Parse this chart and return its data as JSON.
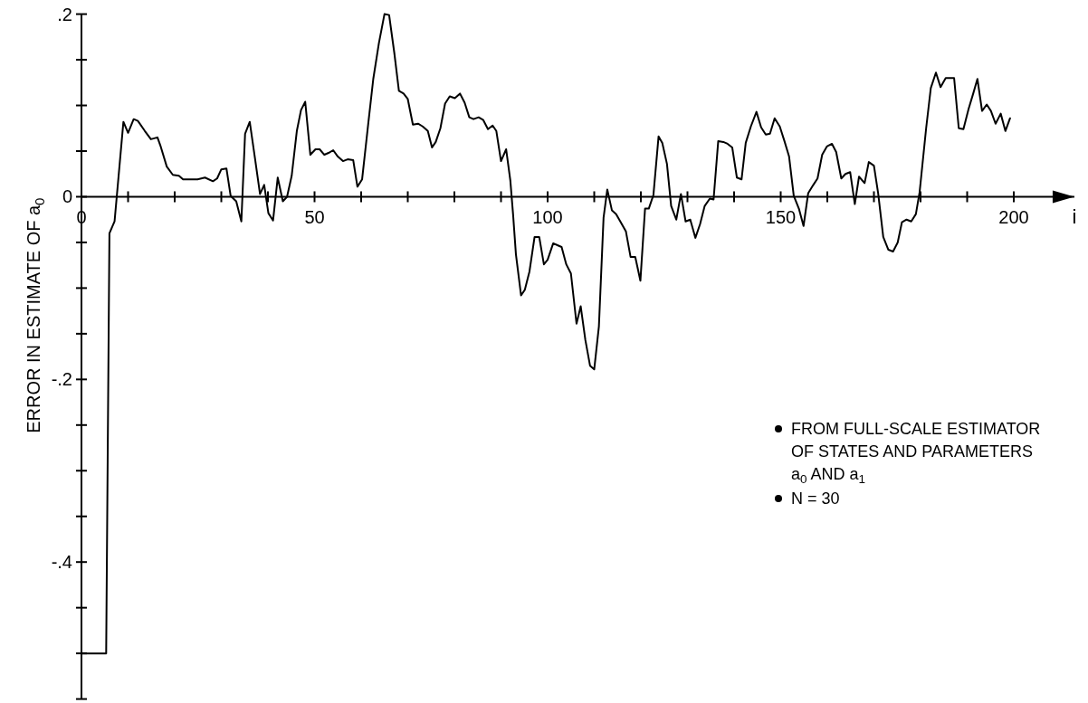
{
  "chart_data": {
    "type": "line",
    "xlabel": "i",
    "ylabel": "ERROR IN ESTIMATE OF a$_{0}$",
    "annotations": [
      "FROM FULL-SCALE ESTIMATOR OF STATES AND PARAMETERS a$_{0}$ AND a$_{1}$",
      "N = 30"
    ],
    "xlim": [
      0,
      213
    ],
    "ylim": [
      -0.55,
      0.2
    ],
    "xticks": [
      0,
      {
        "value": 10,
        "label": null
      },
      {
        "value": 20,
        "label": null
      },
      {
        "value": 30,
        "label": null
      },
      {
        "value": 40,
        "label": null
      },
      50,
      {
        "value": 60,
        "label": null
      },
      {
        "value": 70,
        "label": null
      },
      {
        "value": 80,
        "label": null
      },
      {
        "value": 90,
        "label": null
      },
      100,
      {
        "value": 110,
        "label": null
      },
      {
        "value": 120,
        "label": null
      },
      {
        "value": 130,
        "label": null
      },
      {
        "value": 140,
        "label": null
      },
      150,
      {
        "value": 160,
        "label": null
      },
      {
        "value": 170,
        "label": null
      },
      {
        "value": 180,
        "label": null
      },
      {
        "value": 190,
        "label": null
      },
      200
    ],
    "yticks": [
      {
        "value": -0.55,
        "label": null
      },
      {
        "value": -0.5,
        "label": null
      },
      {
        "value": -0.45,
        "label": null
      },
      {
        "value": -0.4,
        "label": "-.4"
      },
      {
        "value": -0.35,
        "label": null
      },
      {
        "value": -0.3,
        "label": null
      },
      {
        "value": -0.25,
        "label": null
      },
      {
        "value": -0.2,
        "label": "-.2"
      },
      {
        "value": -0.15,
        "label": null
      },
      {
        "value": -0.1,
        "label": null
      },
      {
        "value": -0.05,
        "label": null
      },
      0,
      {
        "value": 0.05,
        "label": null
      },
      {
        "value": 0.1,
        "label": null
      },
      {
        "value": 0.15,
        "label": null
      },
      {
        "value": 0.2,
        "label": ".2"
      }
    ],
    "grid": false,
    "marker": "none",
    "line_style": "solid",
    "series": [
      {
        "color": "#000000",
        "x": [
          0,
          5.3,
          6,
          7.1,
          9,
          10,
          11.2,
          12.1,
          13.6,
          14.9,
          16.3,
          17,
          18.3,
          19.6,
          20.9,
          21.8,
          24.9,
          26.5,
          28.2,
          29.1,
          30,
          31.1,
          32,
          33.2,
          34.3,
          35.1,
          36.1,
          37.2,
          38.3,
          39.2,
          40.1,
          41.1,
          42.1,
          43.2,
          44.1,
          45.1,
          46.2,
          47.1,
          48,
          49.1,
          50.2,
          51.1,
          52.1,
          53,
          54,
          55,
          56.1,
          57.1,
          58.3,
          59.2,
          60.2,
          61.5,
          62.6,
          63.8,
          65,
          66,
          67.1,
          68.1,
          69.1,
          70,
          71.1,
          72.2,
          73.2,
          74.3,
          75.2,
          76,
          77,
          78,
          79,
          80.1,
          81.2,
          82.2,
          83.2,
          84.1,
          85.2,
          86.2,
          87.2,
          88.2,
          89,
          90,
          91.1,
          92,
          92.6,
          93.2,
          94.3,
          95.1,
          96.1,
          97.2,
          98.2,
          99.2,
          100,
          101.2,
          102.1,
          103,
          104,
          105,
          106.2,
          107.1,
          108.1,
          109.1,
          110,
          111,
          112,
          112.8,
          113.8,
          114.7,
          115.7,
          116.8,
          117.8,
          118.8,
          119.9,
          120.9,
          121.7,
          122.7,
          123.8,
          124.6,
          125.6,
          126.5,
          127.6,
          128.6,
          129.6,
          130.6,
          131.7,
          132.7,
          133.7,
          134.8,
          135.6,
          136.6,
          137.7,
          138.6,
          139.6,
          140.6,
          141.6,
          142.5,
          143.6,
          144.8,
          145.8,
          146.8,
          147.7,
          148.7,
          149.8,
          150.8,
          151.8,
          152.8,
          153.9,
          154.9,
          155.9,
          157,
          157.9,
          158.9,
          159.9,
          161,
          161.9,
          163,
          163.9,
          164.9,
          165.9,
          166.8,
          168,
          168.9,
          170,
          170.9,
          172,
          173.1,
          174.1,
          175.1,
          176,
          177,
          178,
          179,
          179.8,
          181.2,
          182.2,
          183.3,
          184.3,
          185.4,
          187.2,
          188.2,
          189.2,
          190.3,
          191.3,
          192.2,
          193.2,
          194.2,
          195.1,
          196.1,
          197.2,
          198.2,
          199.2
        ],
        "values": [
          -0.5,
          -0.5,
          -0.04,
          -0.027,
          0.082,
          0.07,
          0.085,
          0.083,
          0.072,
          0.063,
          0.065,
          0.055,
          0.033,
          0.024,
          0.023,
          0.019,
          0.019,
          0.021,
          0.017,
          0.02,
          0.03,
          0.031,
          0.001,
          -0.005,
          -0.027,
          0.069,
          0.082,
          0.043,
          0.003,
          0.013,
          -0.018,
          -0.026,
          0.021,
          -0.005,
          0,
          0.023,
          0.072,
          0.095,
          0.104,
          0.046,
          0.052,
          0.052,
          0.046,
          0.048,
          0.051,
          0.044,
          0.039,
          0.041,
          0.04,
          0.011,
          0.019,
          0.079,
          0.129,
          0.168,
          0.2,
          0.199,
          0.158,
          0.116,
          0.113,
          0.107,
          0.079,
          0.08,
          0.077,
          0.072,
          0.054,
          0.06,
          0.075,
          0.102,
          0.11,
          0.108,
          0.113,
          0.103,
          0.087,
          0.085,
          0.087,
          0.084,
          0.074,
          0.078,
          0.072,
          0.039,
          0.052,
          0.018,
          -0.02,
          -0.063,
          -0.108,
          -0.102,
          -0.082,
          -0.044,
          -0.044,
          -0.074,
          -0.069,
          -0.051,
          -0.053,
          -0.055,
          -0.074,
          -0.084,
          -0.139,
          -0.12,
          -0.157,
          -0.185,
          -0.189,
          -0.142,
          -0.023,
          0.008,
          -0.015,
          -0.019,
          -0.028,
          -0.038,
          -0.066,
          -0.066,
          -0.092,
          -0.013,
          -0.013,
          0.002,
          0.066,
          0.059,
          0.036,
          -0.01,
          -0.025,
          0.003,
          -0.027,
          -0.025,
          -0.045,
          -0.03,
          -0.01,
          -0.002,
          -0.003,
          0.061,
          0.06,
          0.058,
          0.054,
          0.021,
          0.019,
          0.059,
          0.077,
          0.093,
          0.076,
          0.068,
          0.069,
          0.086,
          0.077,
          0.061,
          0.044,
          0.001,
          -0.013,
          -0.032,
          0.004,
          0.013,
          0.02,
          0.046,
          0.055,
          0.058,
          0.049,
          0.02,
          0.025,
          0.027,
          -0.008,
          0.022,
          0.015,
          0.038,
          0.034,
          0.004,
          -0.044,
          -0.058,
          -0.06,
          -0.05,
          -0.028,
          -0.025,
          -0.027,
          -0.019,
          0.005,
          0.075,
          0.119,
          0.136,
          0.12,
          0.13,
          0.13,
          0.075,
          0.074,
          0.096,
          0.113,
          0.129,
          0.094,
          0.101,
          0.094,
          0.08,
          0.091,
          0.072,
          0.086
        ]
      }
    ]
  }
}
